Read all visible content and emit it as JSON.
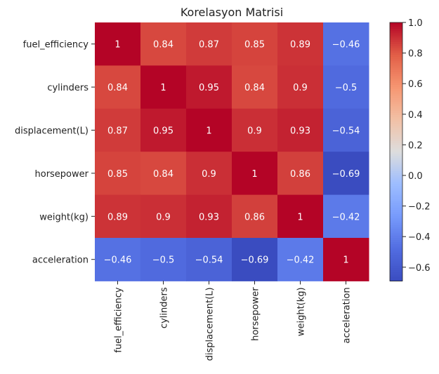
{
  "chart_data": {
    "type": "heatmap",
    "title": "Korelasyon Matrisi",
    "xlabel": "",
    "ylabel": "",
    "rows": [
      "fuel_efficiency",
      "cylinders",
      "displacement(L)",
      "horsepower",
      "weight(kg)",
      "acceleration"
    ],
    "columns": [
      "fuel_efficiency",
      "cylinders",
      "displacement(L)",
      "horsepower",
      "weight(kg)",
      "acceleration"
    ],
    "values": [
      [
        1,
        0.84,
        0.87,
        0.85,
        0.89,
        -0.46
      ],
      [
        0.84,
        1,
        0.95,
        0.84,
        0.9,
        -0.5
      ],
      [
        0.87,
        0.95,
        1,
        0.9,
        0.93,
        -0.54
      ],
      [
        0.85,
        0.84,
        0.9,
        1,
        0.86,
        -0.69
      ],
      [
        0.89,
        0.9,
        0.93,
        0.86,
        1,
        -0.42
      ],
      [
        -0.46,
        -0.5,
        -0.54,
        -0.69,
        -0.42,
        1
      ]
    ],
    "colormap": "coolwarm",
    "vmin": -0.69,
    "vmax": 1,
    "colorbar_ticks": [
      1.0,
      0.8,
      0.6,
      0.4,
      0.2,
      0.0,
      -0.2,
      -0.4,
      -0.6
    ],
    "colorbar_tick_labels": [
      "1.0",
      "0.8",
      "0.6",
      "0.4",
      "0.2",
      "0.0",
      "−0.2",
      "−0.4",
      "−0.6"
    ],
    "annotated": true,
    "grid": false,
    "legend": "colorbar-right"
  }
}
